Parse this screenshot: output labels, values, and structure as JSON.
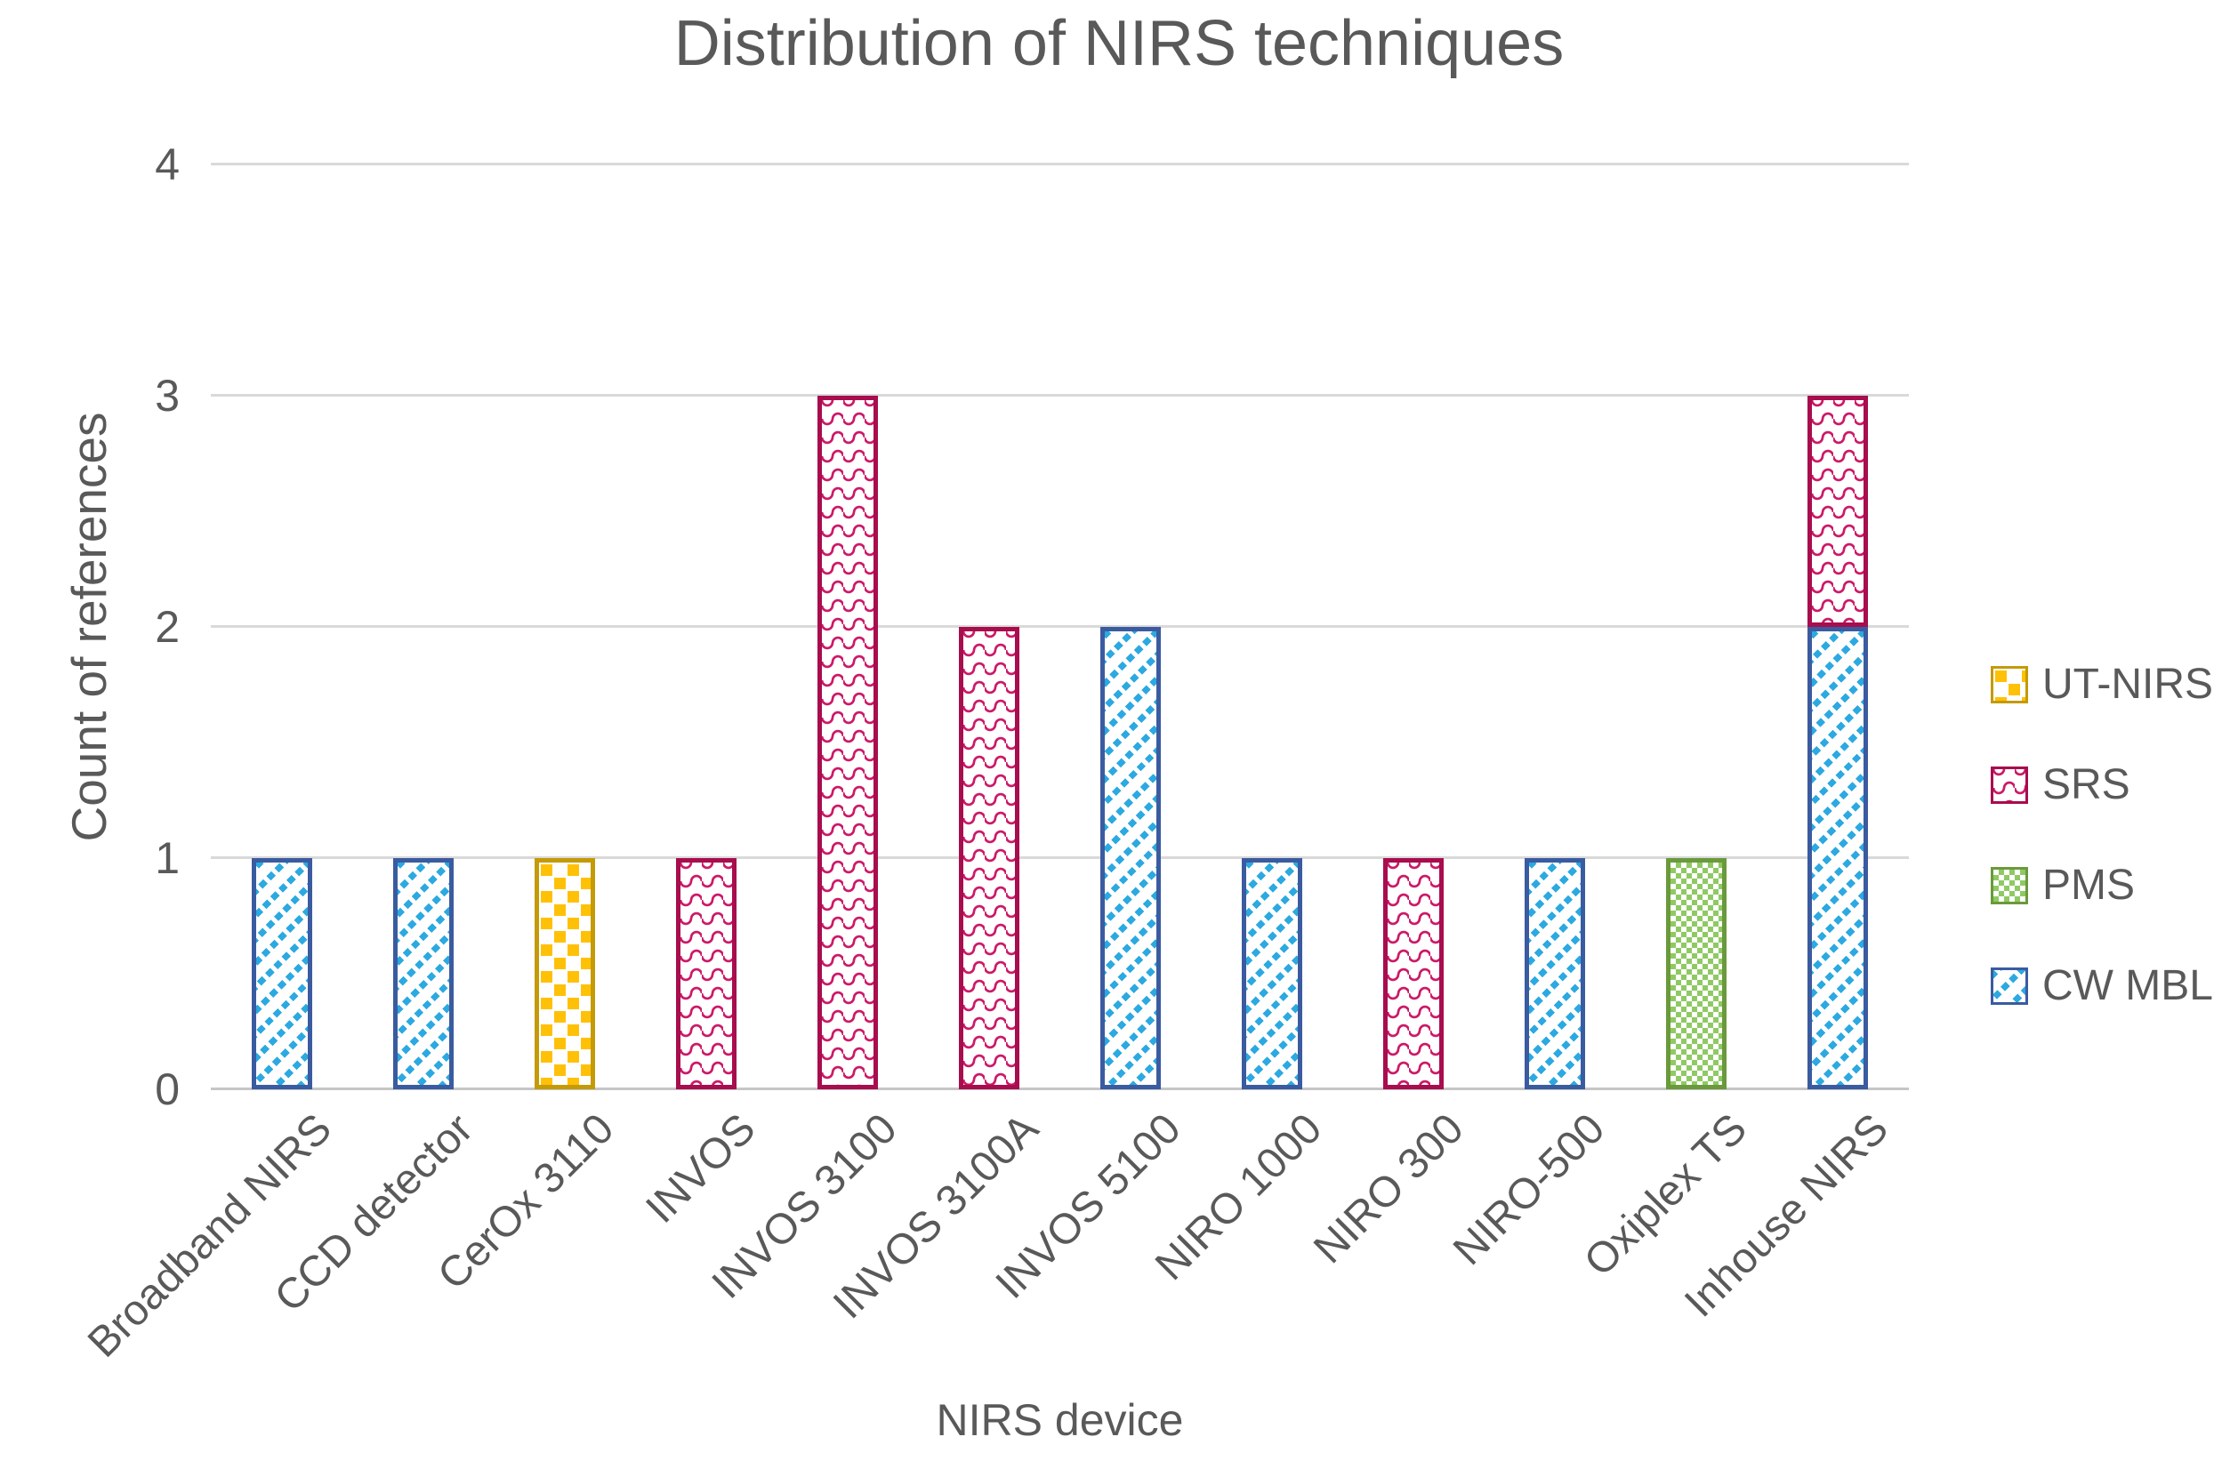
{
  "title": "Distribution of NIRS techniques",
  "y_axis": {
    "label": "Count of references",
    "tick_labels": [
      "4",
      "3",
      "2",
      "1",
      "0"
    ]
  },
  "x_axis": {
    "label": "NIRS device"
  },
  "legend": [
    {
      "label": "UT-NIRS",
      "pattern": "pat-utnirs",
      "border": "#C49A06",
      "fill": "#FFC107"
    },
    {
      "label": "SRS",
      "pattern": "pat-srs",
      "border": "#A80D4E",
      "fill": "#CC1A68"
    },
    {
      "label": "PMS",
      "pattern": "pat-pms",
      "border": "#6A9A3B",
      "fill": "#8FC963"
    },
    {
      "label": "CW MBL",
      "pattern": "pat-cwmbl",
      "border": "#3A5BA0",
      "fill": "#2CA9E1"
    }
  ],
  "colors": {
    "text": "#595959",
    "gridline": "#D9D9D9",
    "axis_line": "#C6C6C6",
    "background": "#FFFFFF"
  },
  "chart_data": {
    "type": "bar",
    "stacked": true,
    "title": "Distribution of NIRS techniques",
    "xlabel": "NIRS device",
    "ylabel": "Count of references",
    "ylim": [
      0,
      4
    ],
    "yticks": [
      4,
      3,
      2,
      1,
      0
    ],
    "grid": true,
    "legend_position": "right",
    "x_label_rotation_deg": 45,
    "categories": [
      "Broadband NIRS",
      "CCD detector",
      "CerOx 3110",
      "INVOS",
      "INVOS 3100",
      "INVOS 3100A",
      "INVOS 5100",
      "NIRO 1000",
      "NIRO 300",
      "NIRO-500",
      "Oxiplex TS",
      "Inhouse NIRS"
    ],
    "stack_order": [
      "CW MBL",
      "PMS",
      "SRS",
      "UT-NIRS"
    ],
    "series": [
      {
        "name": "UT-NIRS",
        "values": [
          0,
          0,
          1,
          0,
          0,
          0,
          0,
          0,
          0,
          0,
          0,
          0
        ]
      },
      {
        "name": "SRS",
        "values": [
          0,
          0,
          0,
          1,
          3,
          2,
          0,
          0,
          1,
          0,
          0,
          1
        ]
      },
      {
        "name": "PMS",
        "values": [
          0,
          0,
          0,
          0,
          0,
          0,
          0,
          0,
          0,
          0,
          1,
          0
        ]
      },
      {
        "name": "CW MBL",
        "values": [
          1,
          1,
          0,
          0,
          0,
          0,
          2,
          1,
          0,
          1,
          0,
          2
        ]
      }
    ],
    "totals": [
      1,
      1,
      1,
      1,
      3,
      2,
      2,
      1,
      1,
      1,
      1,
      3
    ]
  }
}
